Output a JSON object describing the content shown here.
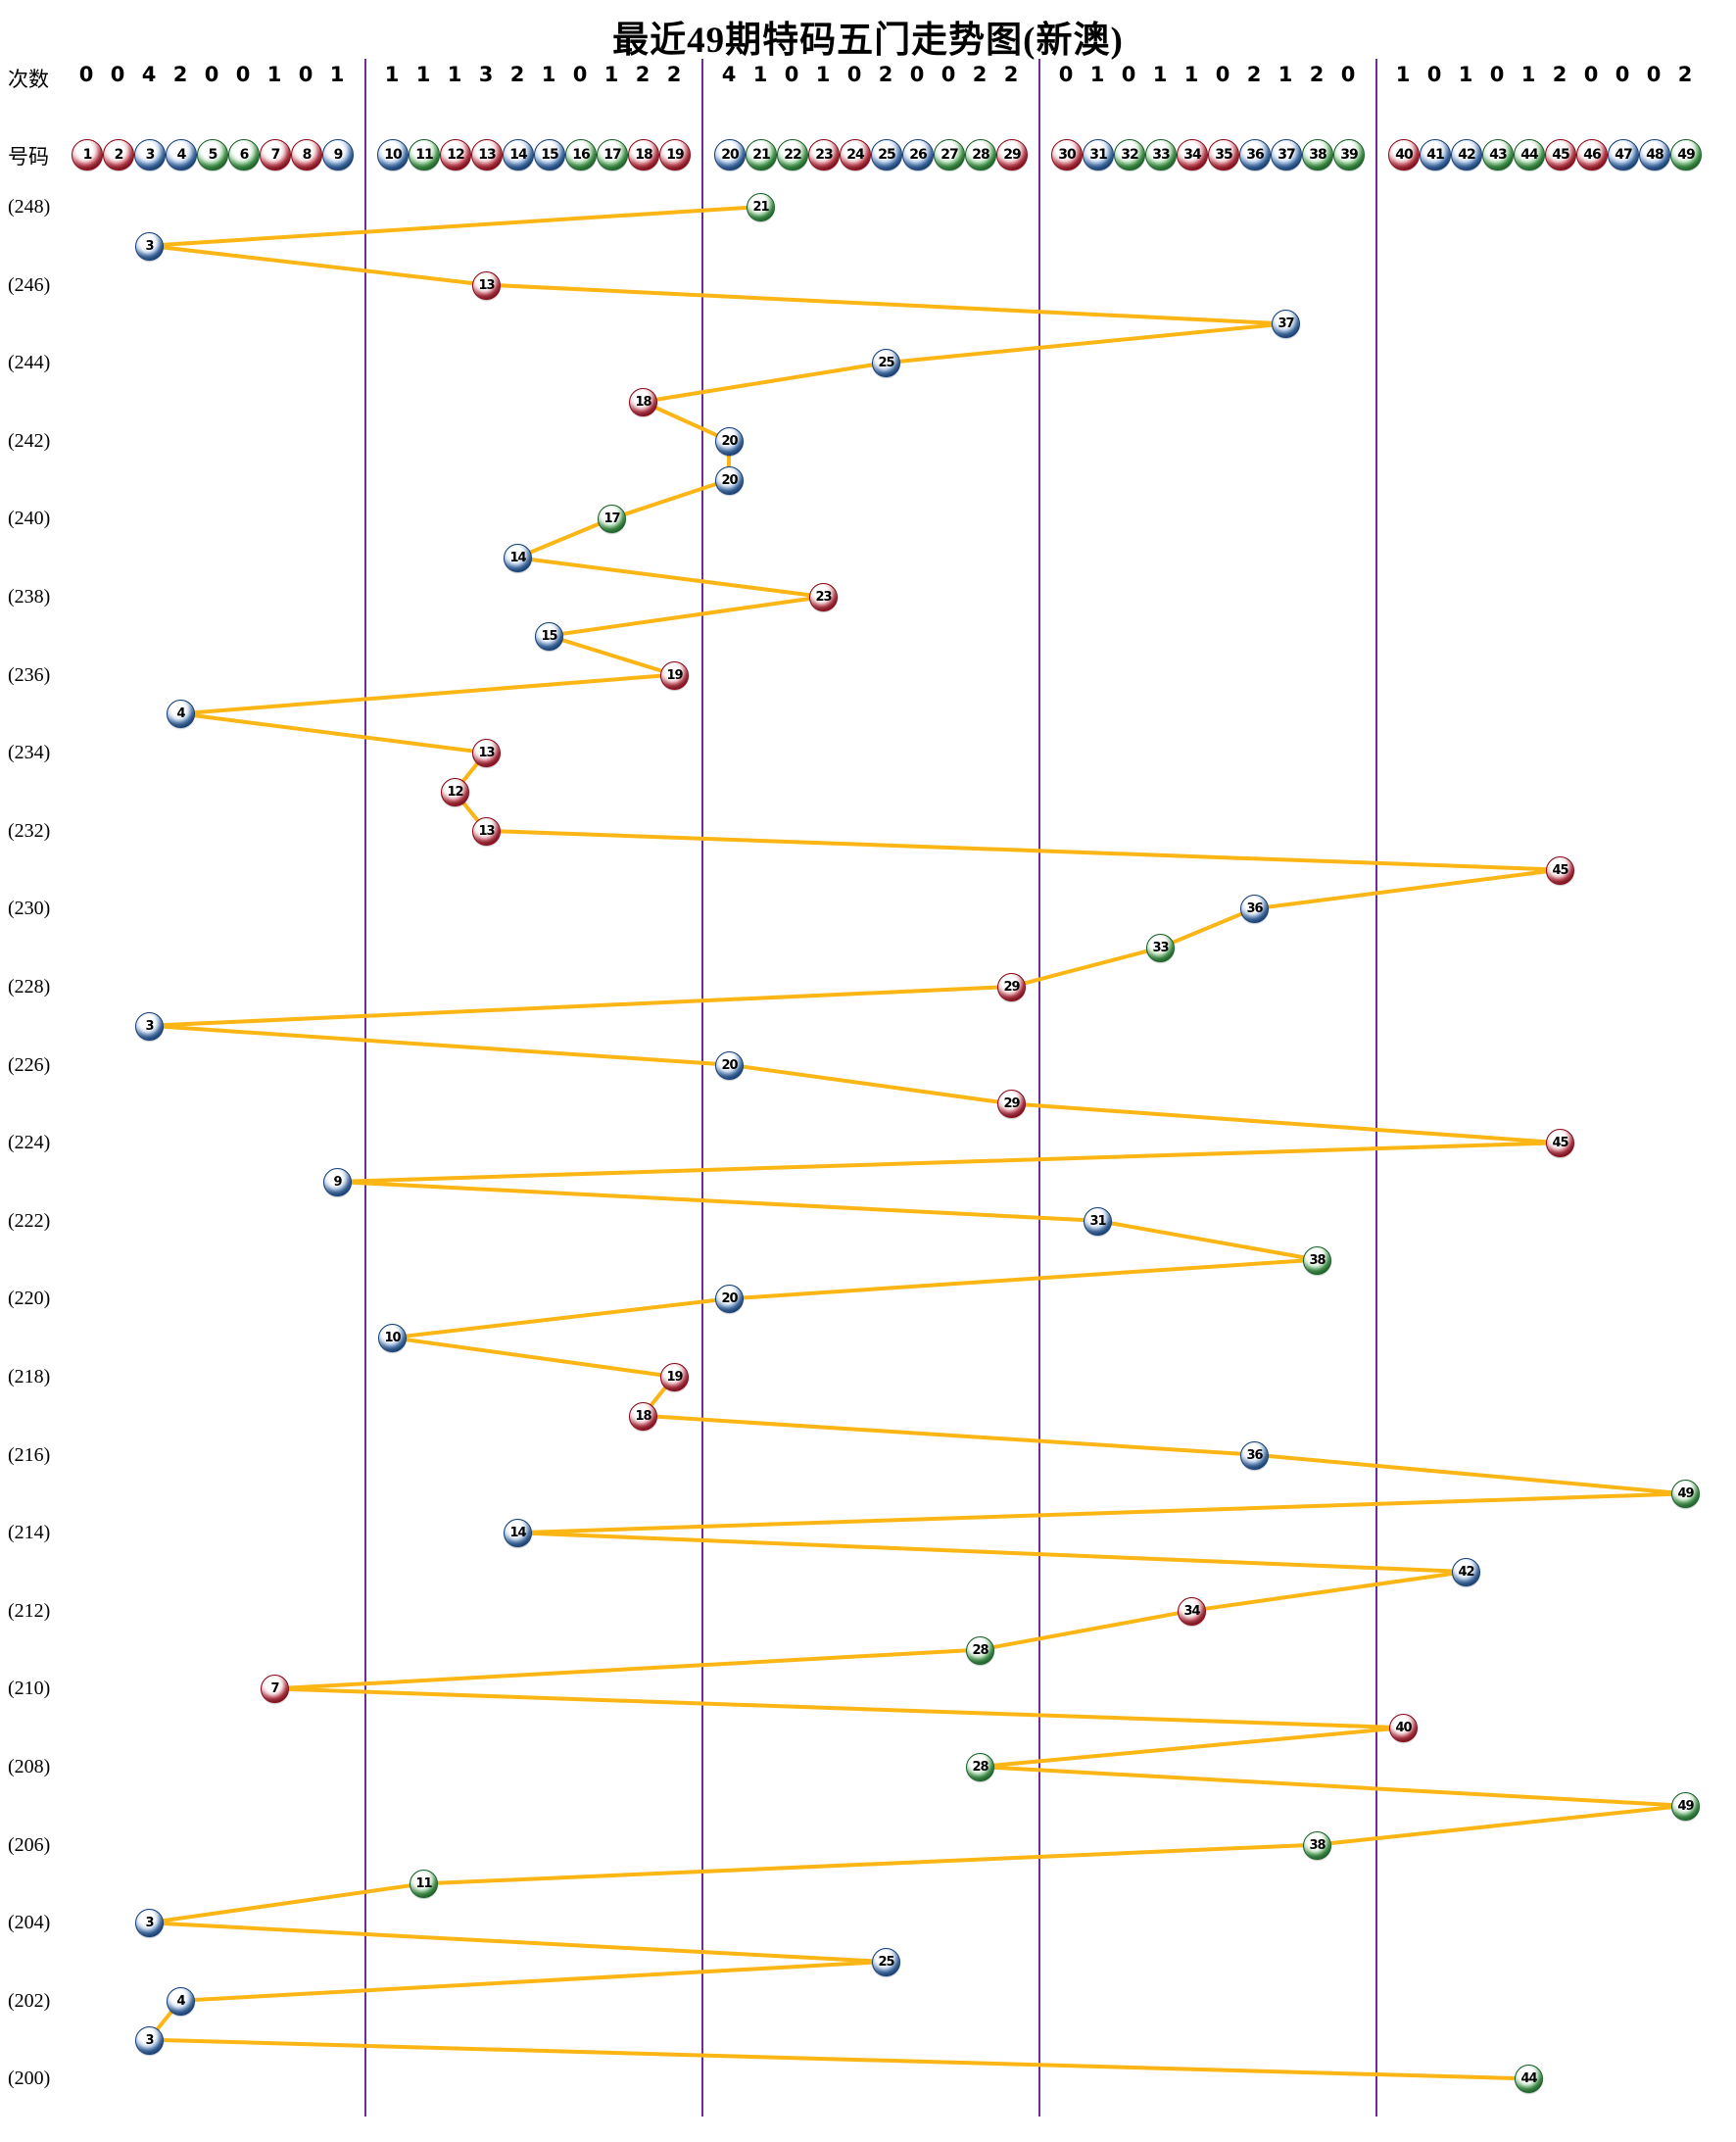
{
  "title": "最近49期特码五门走势图(新澳)",
  "header": {
    "counts_label": "次数",
    "numbers_label": "号码"
  },
  "colors": {
    "line": "#FBB515",
    "divider": "#6B2E91",
    "red": "#B5122A",
    "blue": "#1D5CAB",
    "green": "#27963A"
  },
  "ball_colors": {
    "red": [
      1,
      2,
      7,
      8,
      12,
      13,
      18,
      19,
      23,
      24,
      29,
      30,
      34,
      35,
      40,
      45,
      46
    ],
    "blue": [
      3,
      4,
      9,
      10,
      14,
      15,
      20,
      25,
      26,
      31,
      36,
      37,
      41,
      42,
      47,
      48
    ],
    "green": [
      5,
      6,
      11,
      16,
      17,
      21,
      22,
      27,
      28,
      32,
      33,
      38,
      39,
      43,
      44,
      49
    ]
  },
  "chart_data": {
    "type": "line",
    "title": "最近49期特码五门走势图(新澳)",
    "xlabel": "号码 1-49",
    "ylabel": "期数 (248)-(200)",
    "gates": [
      "1-9",
      "10-19",
      "20-29",
      "30-39",
      "40-49"
    ],
    "ball_numbers": [
      1,
      2,
      3,
      4,
      5,
      6,
      7,
      8,
      9,
      10,
      11,
      12,
      13,
      14,
      15,
      16,
      17,
      18,
      19,
      20,
      21,
      22,
      23,
      24,
      25,
      26,
      27,
      28,
      29,
      30,
      31,
      32,
      33,
      34,
      35,
      36,
      37,
      38,
      39,
      40,
      41,
      42,
      43,
      44,
      45,
      46,
      47,
      48,
      49
    ],
    "number_counts": [
      0,
      0,
      4,
      2,
      0,
      0,
      1,
      0,
      1,
      1,
      1,
      1,
      3,
      2,
      1,
      0,
      1,
      2,
      2,
      4,
      1,
      0,
      1,
      0,
      2,
      0,
      0,
      2,
      2,
      0,
      1,
      0,
      1,
      1,
      0,
      2,
      1,
      2,
      0,
      1,
      0,
      1,
      0,
      1,
      2,
      0,
      0,
      0,
      2
    ],
    "periods": [
      248,
      247,
      246,
      245,
      244,
      243,
      242,
      241,
      240,
      239,
      238,
      237,
      236,
      235,
      234,
      233,
      232,
      231,
      230,
      229,
      228,
      227,
      226,
      225,
      224,
      223,
      222,
      221,
      220,
      219,
      218,
      217,
      216,
      215,
      214,
      213,
      212,
      211,
      210,
      209,
      208,
      207,
      206,
      205,
      204,
      203,
      202,
      201,
      200
    ],
    "values": [
      21,
      3,
      13,
      37,
      25,
      18,
      20,
      20,
      17,
      14,
      23,
      15,
      19,
      4,
      13,
      12,
      13,
      45,
      36,
      33,
      29,
      3,
      20,
      29,
      45,
      9,
      31,
      38,
      20,
      10,
      19,
      18,
      36,
      49,
      14,
      42,
      34,
      28,
      7,
      40,
      28,
      49,
      38,
      11,
      3,
      25,
      4,
      3,
      44
    ],
    "period_label_format": "(N)",
    "grid": "five-gate vertical dividers",
    "legend": "none"
  }
}
